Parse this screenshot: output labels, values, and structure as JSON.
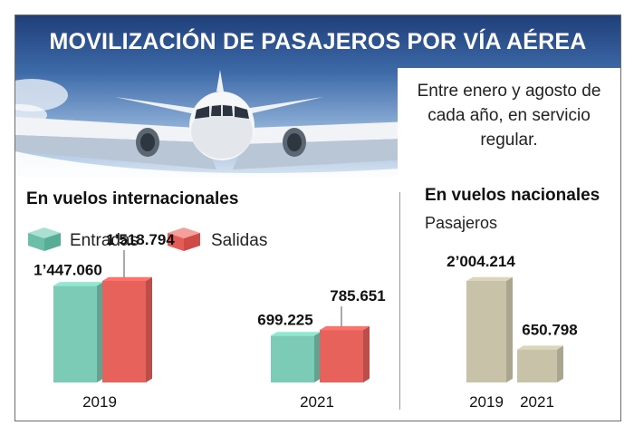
{
  "title": "MOVILIZACIÓN DE PASAJEROS POR VÍA AÉREA",
  "note": "Entre enero y agosto de cada año, en servicio regular.",
  "colors": {
    "entradas": "#7ccbb6",
    "salidas": "#e8625c",
    "nacional": "#c8c2a8"
  },
  "chart_data": [
    {
      "type": "bar",
      "title": "En vuelos internacionales",
      "categories": [
        "2019",
        "2021"
      ],
      "series": [
        {
          "name": "Entradas",
          "values": [
            1447060,
            699225
          ],
          "labels": [
            "1’447.060",
            "699.225"
          ]
        },
        {
          "name": "Salidas",
          "values": [
            1518794,
            785651
          ],
          "labels": [
            "1’518.794",
            "785.651"
          ]
        }
      ],
      "legend": "top-left"
    },
    {
      "type": "bar",
      "title": "En vuelos nacionales",
      "ylabel": "Pasajeros",
      "categories": [
        "2019",
        "2021"
      ],
      "series": [
        {
          "values": [
            2004214,
            650798
          ],
          "labels": [
            "2’004.214",
            "650.798"
          ]
        }
      ]
    }
  ]
}
